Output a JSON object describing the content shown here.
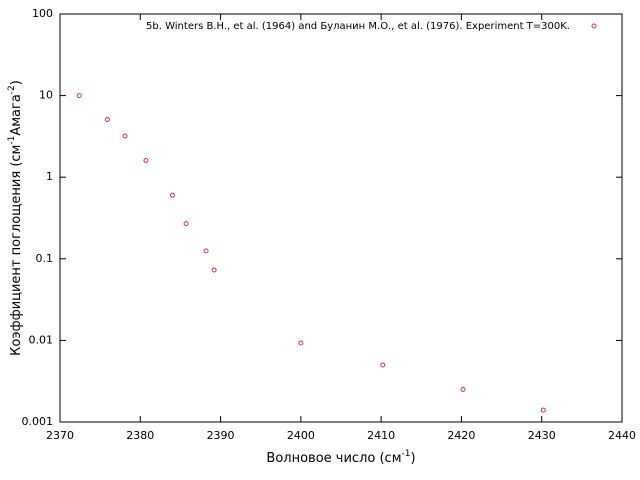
{
  "chart_data": {
    "type": "scatter",
    "x_label": [
      "Волновое число (см",
      "-1",
      ")"
    ],
    "y_label": [
      "Коэффициент поглощения (см",
      "-1",
      "Амага",
      "-2",
      ")"
    ],
    "y_log": true,
    "legend_position": "top-right",
    "xlim": [
      2370,
      2440
    ],
    "xticks": [
      2370,
      2380,
      2390,
      2400,
      2410,
      2420,
      2430,
      2440
    ],
    "ylim": [
      0.001,
      100
    ],
    "yticks": [
      0.001,
      0.01,
      0.1,
      1,
      10,
      100
    ],
    "series": [
      {
        "name": "5b. Winters B.H., et al. (1964) and Буланин М.О., et al. (1976). Experiment T=300K.",
        "color": "#e03030",
        "x": [
          2372.4,
          2375.9,
          2378.1,
          2380.7,
          2384.0,
          2385.7,
          2388.2,
          2389.2,
          2400.0,
          2410.2,
          2420.2,
          2430.2
        ],
        "values": [
          10,
          5.1,
          3.2,
          1.6,
          0.6,
          0.27,
          0.125,
          0.073,
          0.0093,
          0.005,
          0.0025,
          0.0014
        ]
      }
    ]
  }
}
